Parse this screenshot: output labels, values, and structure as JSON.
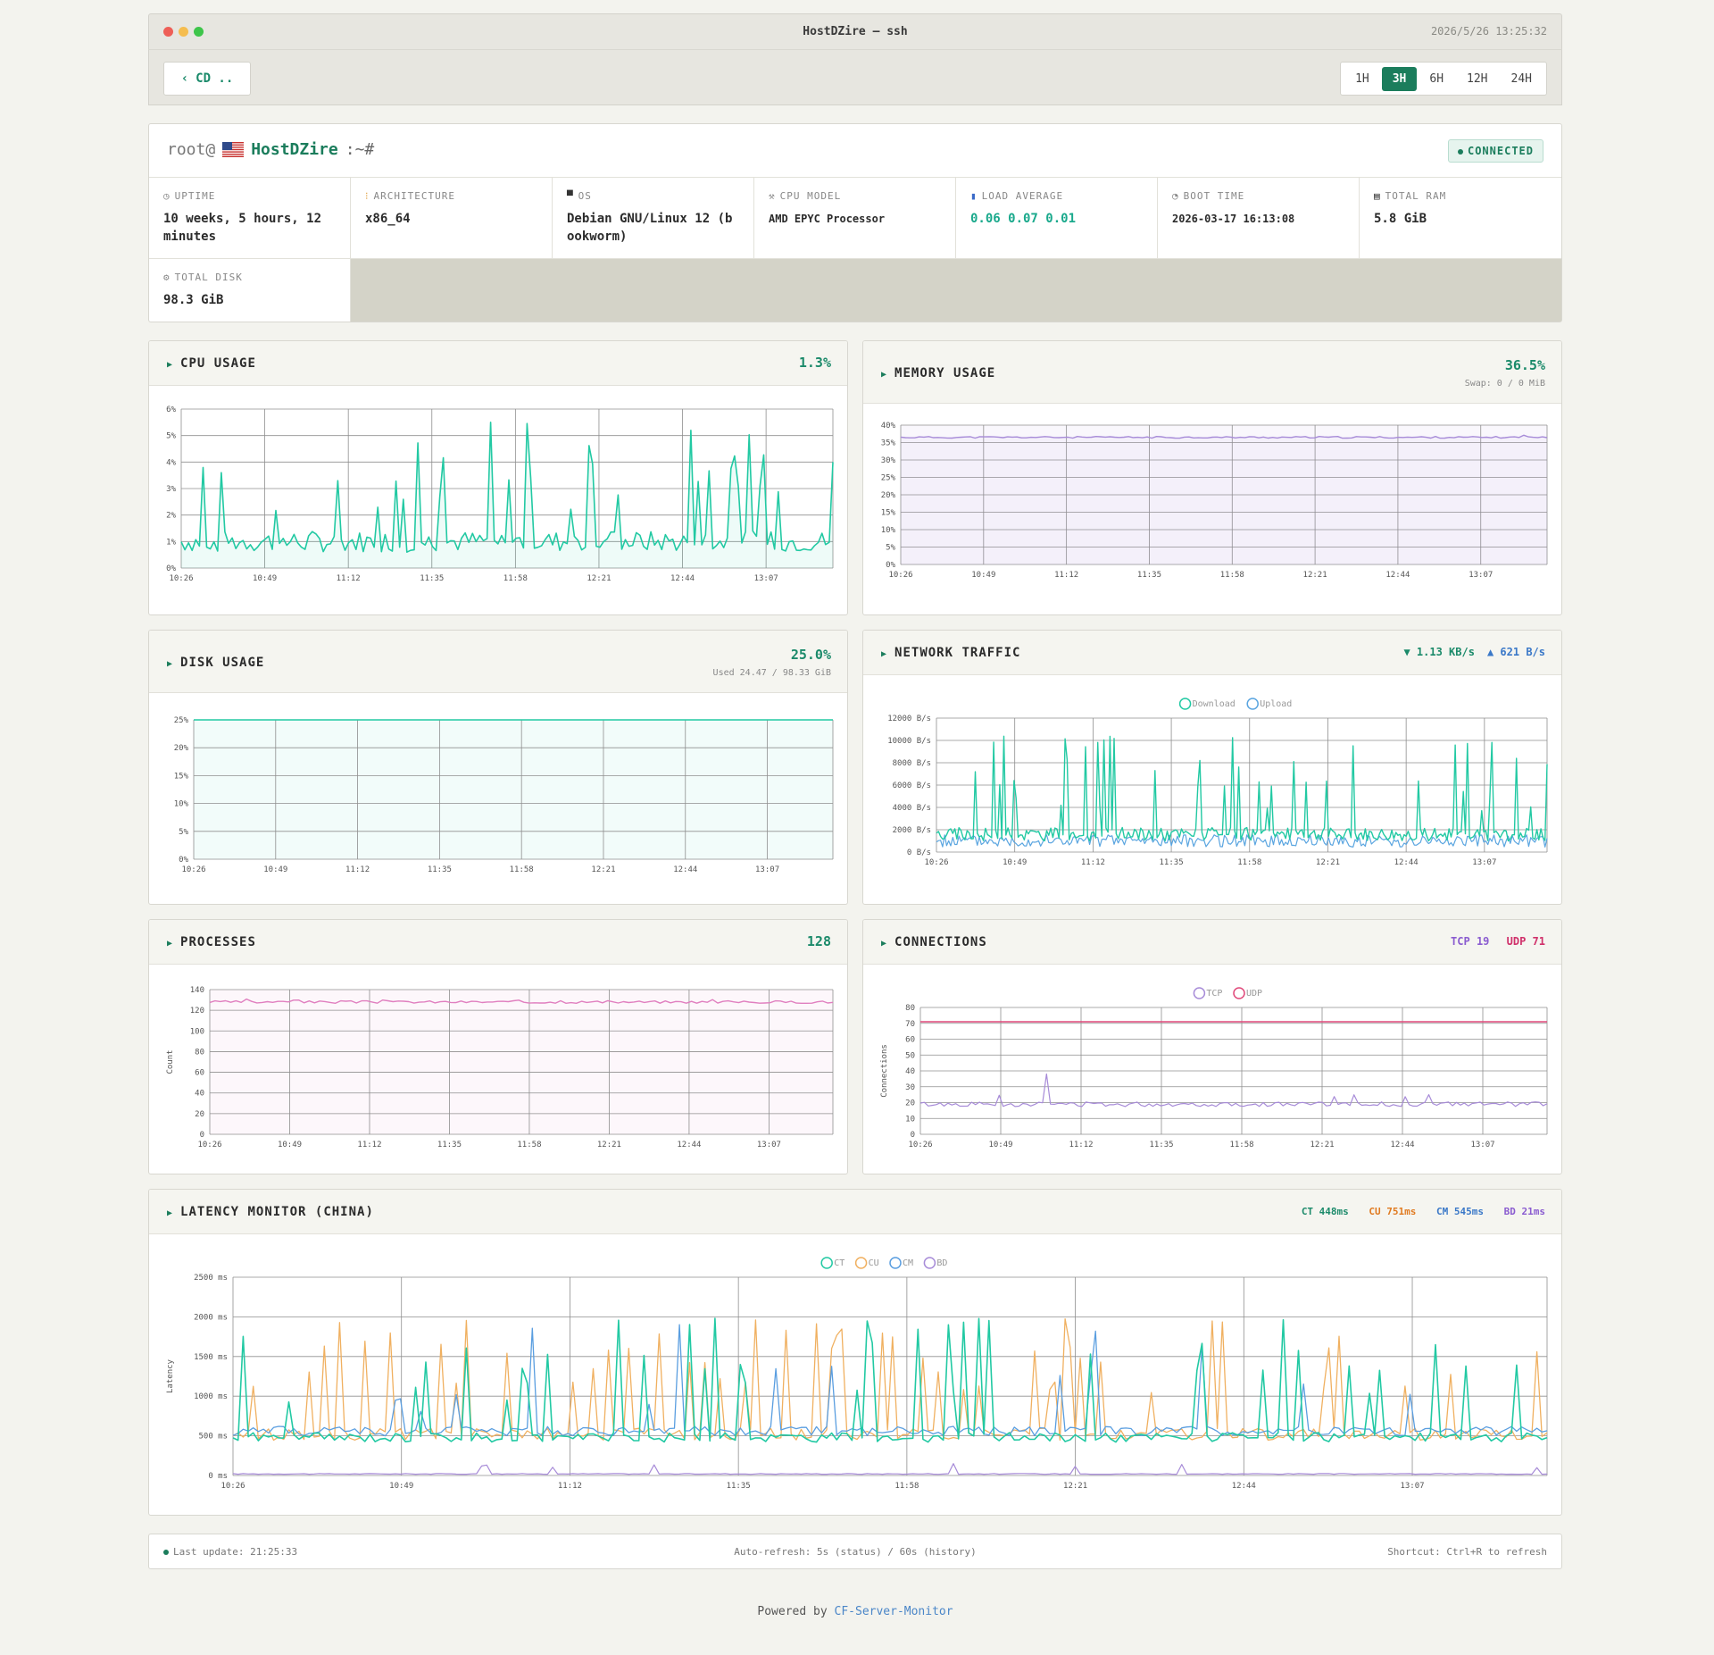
{
  "window": {
    "title": "HostDZire — ssh",
    "clock": "2026/5/26 13:25:32"
  },
  "toolbar": {
    "back_label": "CD ..",
    "back_glyph": "‹",
    "ranges": [
      "1H",
      "3H",
      "6H",
      "12H",
      "24H"
    ],
    "active_range": "3H"
  },
  "header": {
    "prompt_user": "root@",
    "host": "HostDZire",
    "prompt_tail": ":~#",
    "status": "CONNECTED",
    "flag": "US"
  },
  "info": [
    {
      "icon": "◷",
      "label": "UPTIME",
      "value": "10 weeks, 5 hours, 12 minutes"
    },
    {
      "icon": "⁝",
      "label": "ARCHITECTURE",
      "value": "x86_64"
    },
    {
      "icon": "▀",
      "label": "OS",
      "value": "Debian GNU/Linux 12 (bookworm)"
    },
    {
      "icon": "⚒",
      "label": "CPU MODEL",
      "value": "AMD EPYC Processor"
    },
    {
      "icon": "▮",
      "label": "LOAD AVERAGE",
      "value": "0.06 0.07 0.01"
    },
    {
      "icon": "◔",
      "label": "BOOT TIME",
      "value": "2026-03-17 16:13:08"
    },
    {
      "icon": "▤",
      "label": "TOTAL RAM",
      "value": "5.8 GiB"
    },
    {
      "icon": "⚙",
      "label": "TOTAL DISK",
      "value": "98.3 GiB"
    }
  ],
  "x_ticks": [
    "10:26",
    "10:49",
    "11:12",
    "11:35",
    "11:58",
    "12:21",
    "12:44",
    "13:07"
  ],
  "panels": {
    "cpu": {
      "title": "CPU USAGE",
      "value": "1.3%"
    },
    "memory": {
      "title": "MEMORY USAGE",
      "value": "36.5%",
      "sub": "Swap: 0 / 0 MiB"
    },
    "disk": {
      "title": "DISK USAGE",
      "value": "25.0%",
      "sub": "Used 24.47 / 98.33 GiB"
    },
    "network": {
      "title": "NETWORK TRAFFIC",
      "down": "▼ 1.13 KB/s",
      "up": "▲ 621 B/s"
    },
    "processes": {
      "title": "PROCESSES",
      "value": "128"
    },
    "connections": {
      "title": "CONNECTIONS",
      "tcp_label": "TCP",
      "tcp": "19",
      "udp_label": "UDP",
      "udp": "71"
    },
    "latency": {
      "title": "LATENCY MONITOR (CHINA)",
      "ct": "CT 448ms",
      "cu": "CU 751ms",
      "cm": "CM 545ms",
      "bd": "BD 21ms"
    }
  },
  "colors": {
    "cpu": "#22c9a3",
    "memory": "#a78bd8",
    "disk": "#22c9a3",
    "download": "#22c9a3",
    "upload": "#5aa5e0",
    "processes": "#e07fbf",
    "tcp": "#a78bd8",
    "udp": "#e0487a",
    "ct": "#22c9a3",
    "cu": "#f0b060",
    "cm": "#5a9ee0",
    "bd": "#a78bd8"
  },
  "chart_data": [
    {
      "name": "cpu",
      "type": "area",
      "yticks": [
        "0%",
        "1%",
        "2%",
        "3%",
        "4%",
        "5%",
        "6%"
      ],
      "ylim": [
        0,
        6
      ],
      "baseline": 1.0,
      "spikes_to": 5.6
    },
    {
      "name": "memory",
      "type": "area",
      "yticks": [
        "0%",
        "5%",
        "10%",
        "15%",
        "20%",
        "25%",
        "30%",
        "35%",
        "40%"
      ],
      "ylim": [
        0,
        40
      ],
      "level": 36.5
    },
    {
      "name": "disk",
      "type": "area",
      "yticks": [
        "0%",
        "5%",
        "10%",
        "15%",
        "20%",
        "25%"
      ],
      "ylim": [
        0,
        25
      ],
      "level": 25.0
    },
    {
      "name": "network",
      "type": "line",
      "yticks": [
        "0 B/s",
        "2000 B/s",
        "4000 B/s",
        "6000 B/s",
        "8000 B/s",
        "10000 B/s",
        "12000 B/s"
      ],
      "ylim": [
        0,
        12000
      ],
      "legend": [
        "Download",
        "Upload"
      ]
    },
    {
      "name": "processes",
      "type": "line",
      "ylabel": "Count",
      "yticks": [
        "0",
        "20",
        "40",
        "60",
        "80",
        "100",
        "120",
        "140"
      ],
      "ylim": [
        0,
        140
      ],
      "level": 128
    },
    {
      "name": "connections",
      "type": "line",
      "ylabel": "Connections",
      "yticks": [
        "0",
        "10",
        "20",
        "30",
        "40",
        "50",
        "60",
        "70",
        "80"
      ],
      "ylim": [
        0,
        80
      ],
      "legend": [
        "TCP",
        "UDP"
      ],
      "tcp": 19,
      "udp": 71
    },
    {
      "name": "latency",
      "type": "line",
      "ylabel": "Latency",
      "yticks": [
        "0 ms",
        "500 ms",
        "1000 ms",
        "1500 ms",
        "2000 ms",
        "2500 ms"
      ],
      "ylim": [
        0,
        2500
      ],
      "legend": [
        "CT",
        "CU",
        "CM",
        "BD"
      ]
    }
  ],
  "footer": {
    "last_update": "Last update: 21:25:33",
    "refresh": "Auto-refresh: 5s (status) / 60s (history)",
    "shortcut": "Shortcut: Ctrl+R to refresh"
  },
  "powered": {
    "prefix": "Powered by",
    "link": "CF-Server-Monitor"
  }
}
